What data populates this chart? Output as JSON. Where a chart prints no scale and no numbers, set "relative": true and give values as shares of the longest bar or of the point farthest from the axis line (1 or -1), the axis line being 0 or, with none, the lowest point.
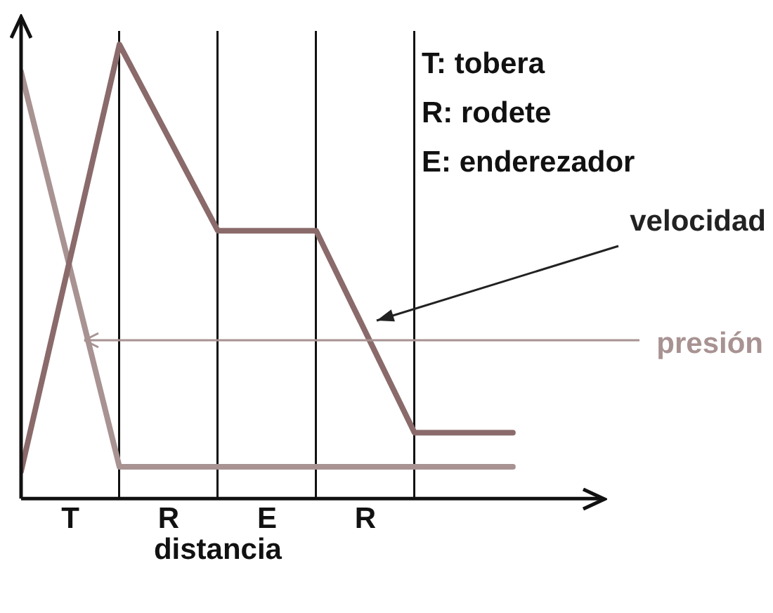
{
  "chart_data": {
    "type": "line",
    "relative": true,
    "xlabel": "distancia",
    "categories": [
      null,
      null,
      null,
      null,
      null,
      null
    ],
    "series": [
      {
        "name": "velocidad",
        "color": "#8a6a6a",
        "values": [
          0.06,
          1,
          0.59,
          0.59,
          0.145,
          0.145
        ]
      },
      {
        "name": "presión",
        "color": "#a89292",
        "values": [
          0.94,
          0.07,
          0.07,
          0.07,
          0.07,
          0.07
        ]
      }
    ],
    "annotations": [
      "T: tobera",
      "R: rodete",
      "E: enderezador",
      "T",
      "R",
      "E",
      "R"
    ],
    "grid": "x",
    "marker": "none",
    "line_style": "solid",
    "legend": false
  }
}
